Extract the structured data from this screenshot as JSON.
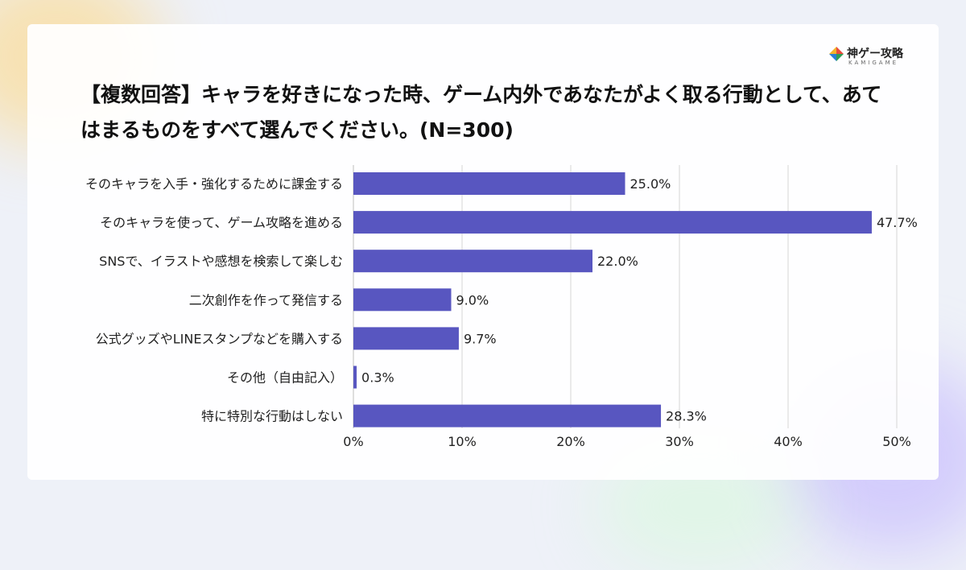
{
  "logo": {
    "name": "神ゲー攻略",
    "sub": "KAMIGAME"
  },
  "chart_data": {
    "type": "bar",
    "orientation": "horizontal",
    "title": "【複数回答】キャラを好きになった時、ゲーム内外であなたがよく取る行動として、あてはまるものをすべて選んでください。(N=300)",
    "categories": [
      "そのキャラを入手・強化するために課金する",
      "そのキャラを使って、ゲーム攻略を進める",
      "SNSで、イラストや感想を検索して楽しむ",
      "二次創作を作って発信する",
      "公式グッズやLINEスタンプなどを購入する",
      "その他（自由記入）",
      "特に特別な行動はしない"
    ],
    "values": [
      25.0,
      47.7,
      22.0,
      9.0,
      9.7,
      0.3,
      28.3
    ],
    "value_labels": [
      "25.0%",
      "47.7%",
      "22.0%",
      "9.0%",
      "9.7%",
      "0.3%",
      "28.3%"
    ],
    "xlim": [
      0,
      50
    ],
    "xticks": [
      0,
      10,
      20,
      30,
      40,
      50
    ],
    "xtick_labels": [
      "0%",
      "10%",
      "20%",
      "30%",
      "40%",
      "50%"
    ],
    "grid": true,
    "bar_color": "#5856c0"
  }
}
